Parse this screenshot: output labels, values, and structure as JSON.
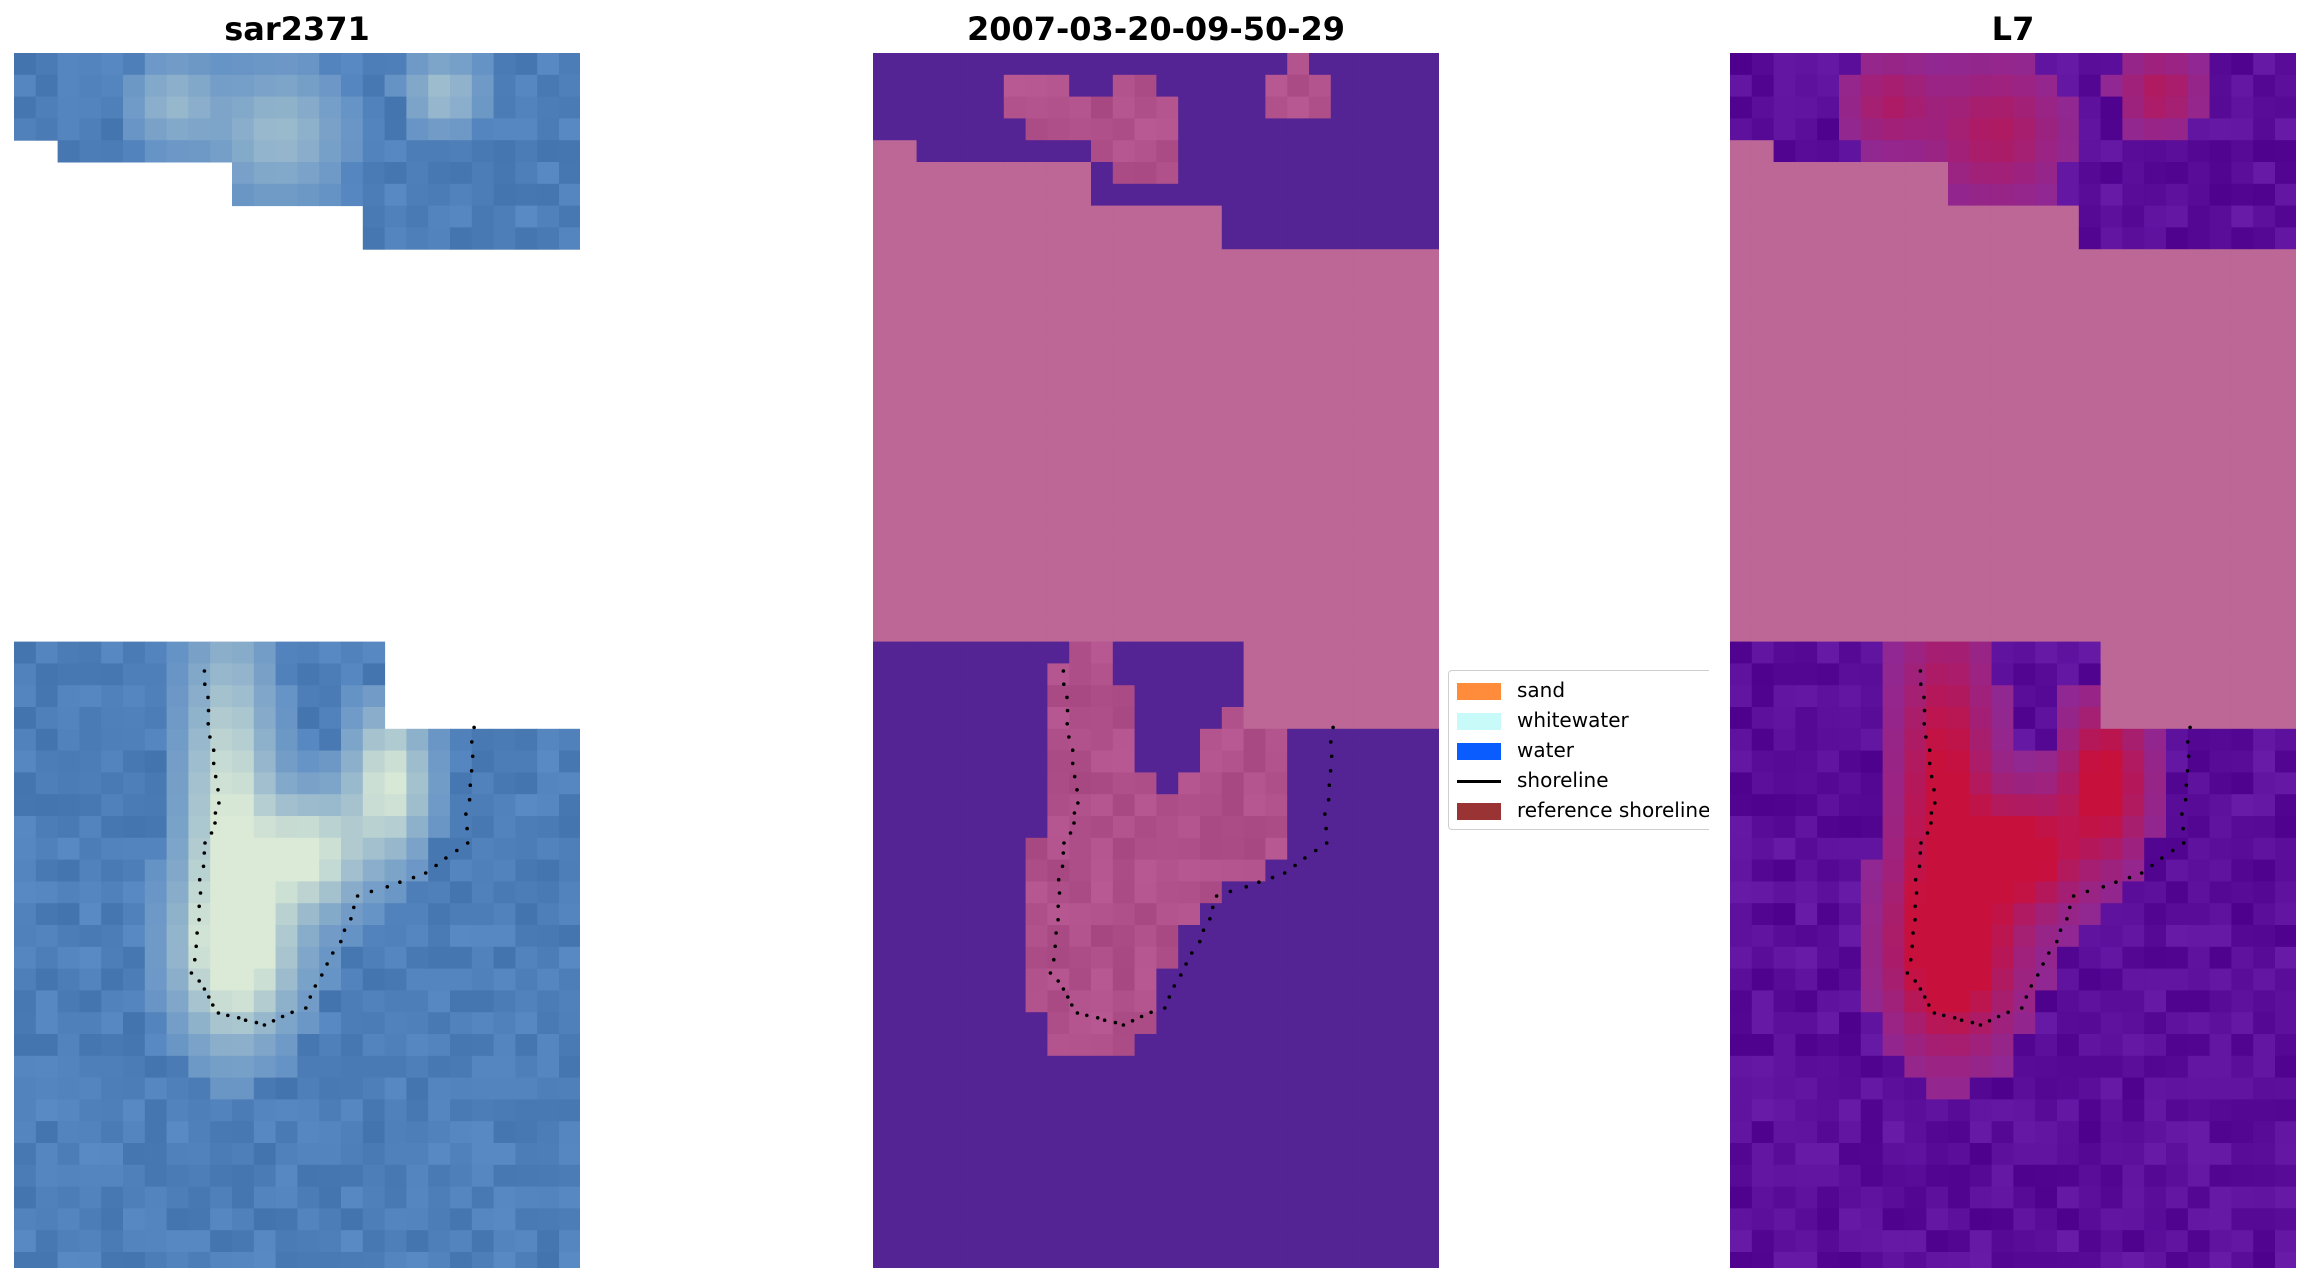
{
  "panels": [
    {
      "title": "sar2371",
      "image": "rgb-satellite-image"
    },
    {
      "title": "2007-03-20-09-50-29",
      "image": "classified-image"
    },
    {
      "title": "L7",
      "image": "mndwi-image"
    }
  ],
  "legend": {
    "items": [
      {
        "label": "sand",
        "kind": "patch",
        "color": "#ff8c3a"
      },
      {
        "label": "whitewater",
        "kind": "patch",
        "color": "#c8fafa"
      },
      {
        "label": "water",
        "kind": "patch",
        "color": "#0a5cff"
      },
      {
        "label": "shoreline",
        "kind": "line",
        "color": "#000000"
      },
      {
        "label": "reference shoreline b",
        "kind": "patch",
        "color": "#9a3434"
      }
    ]
  },
  "colors": {
    "nodata": "#bc6796",
    "water_class": "#542394",
    "rgb_water": "#4f7fb8",
    "rgb_bright": "#e8f4d8",
    "mndwi_high": "#c8103c",
    "mndwi_low": "#5a0e9a"
  }
}
